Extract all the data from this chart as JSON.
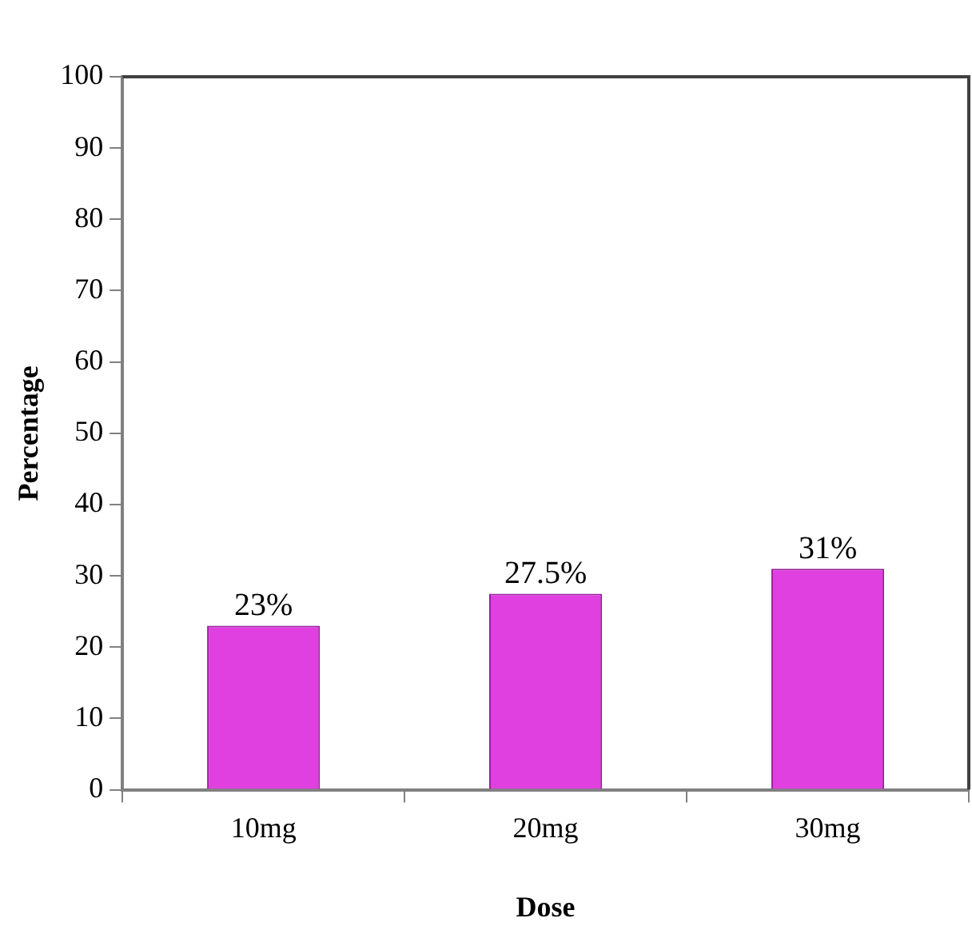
{
  "chart_data": {
    "type": "bar",
    "xlabel": "Dose",
    "ylabel": "Percentage",
    "categories": [
      "10mg",
      "20mg",
      "30mg"
    ],
    "values": [
      23,
      27.5,
      31
    ],
    "color": "#e040e0",
    "value_labels": [
      "23%",
      "27.5%",
      "31%"
    ],
    "ylim": [
      0,
      100
    ],
    "yticks": [
      0,
      10,
      20,
      30,
      40,
      50,
      60,
      70,
      80,
      90,
      100
    ],
    "grid": false,
    "legend": false
  }
}
